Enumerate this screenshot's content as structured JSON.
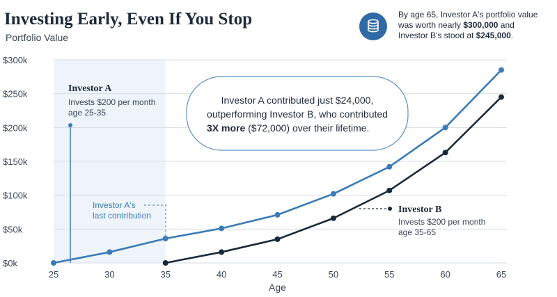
{
  "header": {
    "title": "Investing Early, Even If You Stop",
    "subtitle": "Portfolio Value"
  },
  "info": {
    "icon": "coins-icon",
    "line1": "By age 65, Investor A's portfolio value",
    "line2_pre": "was worth nearly ",
    "line2_bold": "$300,000",
    "line2_post": " and",
    "line3_pre": "Investor B's stood at ",
    "line3_bold": "$245,000",
    "line3_post": "."
  },
  "callout": {
    "line1": "Investor A contributed just $24,000,",
    "line2": "outperforming Investor B, who contributed",
    "line3_bold": "3X more",
    "line3_rest": " ($72,000) over their lifetime."
  },
  "annotations": {
    "investor_a_name": "Investor A",
    "investor_a_desc1": "Invests $200 per month",
    "investor_a_desc2": "age 25-35",
    "last_contribution1": "Investor A's",
    "last_contribution2": "last contribution",
    "investor_b_name": "Investor B",
    "investor_b_desc1": "Invests $200 per month",
    "investor_b_desc2": "age 35-65"
  },
  "colors": {
    "investor_a": "#3b7bb7",
    "investor_b": "#1b2a38",
    "shade": "#eef4f9",
    "grid": "#d6dde5"
  },
  "chart_data": {
    "type": "line",
    "xlabel": "Age",
    "ylabel": "",
    "xlim": [
      25,
      65
    ],
    "ylim": [
      0,
      300000
    ],
    "x_ticks": [
      25,
      30,
      35,
      40,
      45,
      50,
      55,
      60,
      65
    ],
    "y_ticks": [
      0,
      50000,
      100000,
      150000,
      200000,
      250000,
      300000
    ],
    "y_tick_labels": [
      "$0k",
      "$50k",
      "$100k",
      "$150k",
      "$200k",
      "$250k",
      "$300k"
    ],
    "shaded_range": [
      25,
      35
    ],
    "grid": "horizontal",
    "series": [
      {
        "name": "Investor A",
        "x": [
          25,
          30,
          35,
          40,
          45,
          50,
          55,
          60,
          65
        ],
        "values": [
          0,
          16000,
          36000,
          51000,
          71000,
          102000,
          142000,
          200000,
          285000
        ]
      },
      {
        "name": "Investor B",
        "x": [
          35,
          40,
          45,
          50,
          55,
          60,
          65
        ],
        "values": [
          0,
          16000,
          35000,
          66000,
          107000,
          163000,
          245000
        ]
      }
    ]
  }
}
